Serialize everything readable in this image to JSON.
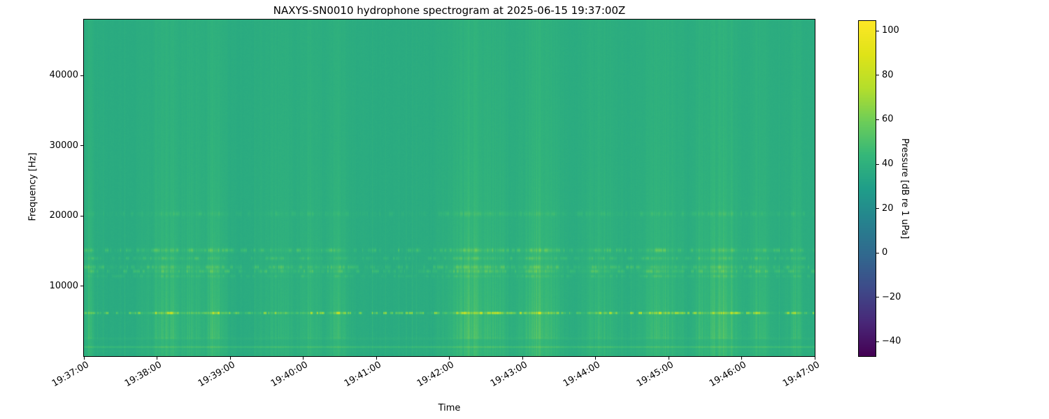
{
  "title": "NAXYS-SN0010 hydrophone spectrogram at 2025-06-15 19:37:00Z",
  "axes": {
    "xlabel": "Time",
    "ylabel": "Frequency [Hz]",
    "x_ticks": [
      "19:37:00",
      "19:38:00",
      "19:39:00",
      "19:40:00",
      "19:41:00",
      "19:42:00",
      "19:43:00",
      "19:44:00",
      "19:45:00",
      "19:46:00",
      "19:47:00"
    ],
    "y_ticks": [
      {
        "value": 10000,
        "label": "10000"
      },
      {
        "value": 20000,
        "label": "20000"
      },
      {
        "value": 30000,
        "label": "30000"
      },
      {
        "value": 40000,
        "label": "40000"
      }
    ],
    "ylim_hz": [
      0,
      48000
    ]
  },
  "colorbar": {
    "label": "Pressure [dB re 1 uPa]",
    "colormap": "viridis",
    "vmin": -46.5,
    "vmax": 104.5,
    "ticks": [
      {
        "value": 100,
        "label": "100"
      },
      {
        "value": 80,
        "label": "80"
      },
      {
        "value": 60,
        "label": "60"
      },
      {
        "value": 40,
        "label": "40"
      },
      {
        "value": 20,
        "label": "20"
      },
      {
        "value": 0,
        "label": "0"
      },
      {
        "value": -20,
        "label": "−20"
      },
      {
        "value": -40,
        "label": "−40"
      }
    ]
  },
  "chart_data": {
    "type": "heatmap",
    "title": "NAXYS-SN0010 hydrophone spectrogram at 2025-06-15 19:37:00Z",
    "xlabel": "Time",
    "ylabel": "Frequency [Hz]",
    "x_ticks": [
      "19:37:00",
      "19:38:00",
      "19:39:00",
      "19:40:00",
      "19:41:00",
      "19:42:00",
      "19:43:00",
      "19:44:00",
      "19:45:00",
      "19:46:00",
      "19:47:00"
    ],
    "time_span_minutes": 10,
    "ylim": [
      0,
      48000
    ],
    "y_ticks": [
      10000,
      20000,
      30000,
      40000
    ],
    "colormap": "viridis",
    "value_label": "Pressure [dB re 1 uPa]",
    "value_range": [
      -46.5,
      104.5
    ],
    "background_level_db": 37,
    "features": {
      "tonal_bands": [
        {
          "freq_hz": 6150,
          "level_db": 75,
          "character": "bright yellow-green intermittent dashes, strongest band"
        },
        {
          "freq_hz": 11400,
          "level_db": 43,
          "character": "faint dashed band"
        },
        {
          "freq_hz": 12100,
          "level_db": 48,
          "character": "dashed band"
        },
        {
          "freq_hz": 12700,
          "level_db": 48,
          "character": "dashed band"
        },
        {
          "freq_hz": 13950,
          "level_db": 45,
          "character": "faint dashed band"
        },
        {
          "freq_hz": 15100,
          "level_db": 48,
          "character": "dashed band"
        },
        {
          "freq_hz": 20300,
          "level_db": 42,
          "character": "very faint dashed band"
        }
      ],
      "low_frequency_band": {
        "freq_hz": 1300,
        "level_db": 46,
        "character": "continuous narrow bright band near bottom edge"
      },
      "broadband_impulses": {
        "character": "irregular vertical striations from impulsive events every few seconds, visible across all frequencies, strongest below 20 kHz"
      }
    },
    "legend_position": "colorbar-right",
    "grid": false
  },
  "colors": {
    "background": "#ffffff",
    "axis": "#000000",
    "base_field": "#2aa985",
    "bright_dash": "#c8e02a"
  }
}
